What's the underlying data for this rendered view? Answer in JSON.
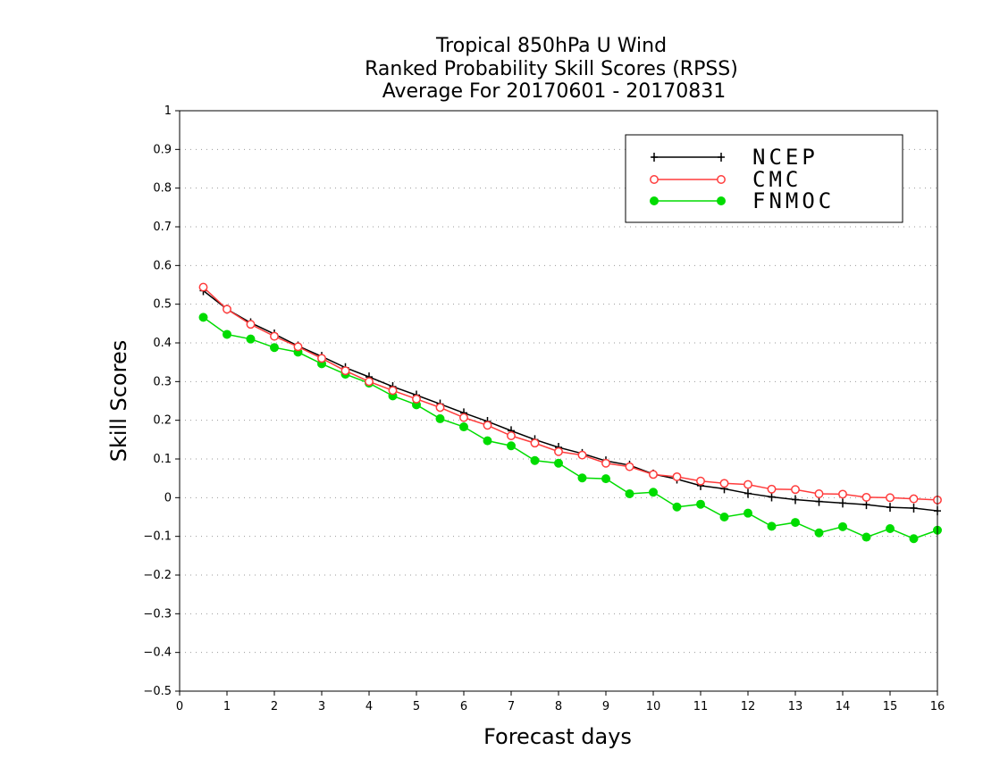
{
  "chart_data": {
    "type": "line",
    "title_lines": [
      "Tropical 850hPa U Wind",
      "Ranked Probability Skill Scores (RPSS)",
      "Average For 20170601 - 20170831"
    ],
    "xlabel": "Forecast days",
    "ylabel": "Skill Scores",
    "xlim": [
      0,
      16
    ],
    "ylim": [
      -0.5,
      1
    ],
    "x_ticks": [
      "0",
      "1",
      "2",
      "3",
      "4",
      "5",
      "6",
      "7",
      "8",
      "9",
      "10",
      "11",
      "12",
      "13",
      "14",
      "15",
      "16"
    ],
    "y_ticks": [
      "1",
      "0.9",
      "0.8",
      "0.7",
      "0.6",
      "0.5",
      "0.4",
      "0.3",
      "0.2",
      "0.1",
      "0",
      "−0.1",
      "−0.2",
      "−0.3",
      "−0.4",
      "−0.5"
    ],
    "grid": "horizontal dotted",
    "legend_position": "top-right",
    "x": [
      0.5,
      1,
      1.5,
      2,
      2.5,
      3,
      3.5,
      4,
      4.5,
      5,
      5.5,
      6,
      6.5,
      7,
      7.5,
      8,
      8.5,
      9,
      9.5,
      10,
      10.5,
      11,
      11.5,
      12,
      12.5,
      13,
      13.5,
      14,
      14.5,
      15,
      15.5,
      16
    ],
    "series": [
      {
        "name": "NCEP",
        "color": "#000000",
        "marker": "plus",
        "values": [
          0.535,
          0.487,
          0.452,
          0.423,
          0.392,
          0.365,
          0.336,
          0.312,
          0.287,
          0.265,
          0.242,
          0.219,
          0.197,
          0.173,
          0.15,
          0.13,
          0.114,
          0.095,
          0.084,
          0.061,
          0.048,
          0.031,
          0.023,
          0.011,
          0.002,
          -0.005,
          -0.01,
          -0.014,
          -0.018,
          -0.025,
          -0.027,
          -0.034
        ]
      },
      {
        "name": "CMC",
        "color": "#ff3c3c",
        "marker": "open-circle",
        "values": [
          0.544,
          0.487,
          0.448,
          0.417,
          0.39,
          0.36,
          0.328,
          0.3,
          0.277,
          0.255,
          0.233,
          0.207,
          0.187,
          0.16,
          0.141,
          0.119,
          0.11,
          0.089,
          0.08,
          0.06,
          0.054,
          0.043,
          0.037,
          0.034,
          0.022,
          0.021,
          0.01,
          0.009,
          0.001,
          0.0,
          -0.003,
          -0.006
        ]
      },
      {
        "name": "FNMOC",
        "color": "#00dc00",
        "marker": "filled-circle",
        "values": [
          0.466,
          0.422,
          0.41,
          0.388,
          0.376,
          0.346,
          0.319,
          0.296,
          0.263,
          0.24,
          0.204,
          0.183,
          0.147,
          0.134,
          0.096,
          0.089,
          0.051,
          0.049,
          0.01,
          0.014,
          -0.024,
          -0.017,
          -0.05,
          -0.04,
          -0.074,
          -0.064,
          -0.091,
          -0.075,
          -0.102,
          -0.08,
          -0.106,
          -0.084
        ]
      }
    ]
  }
}
